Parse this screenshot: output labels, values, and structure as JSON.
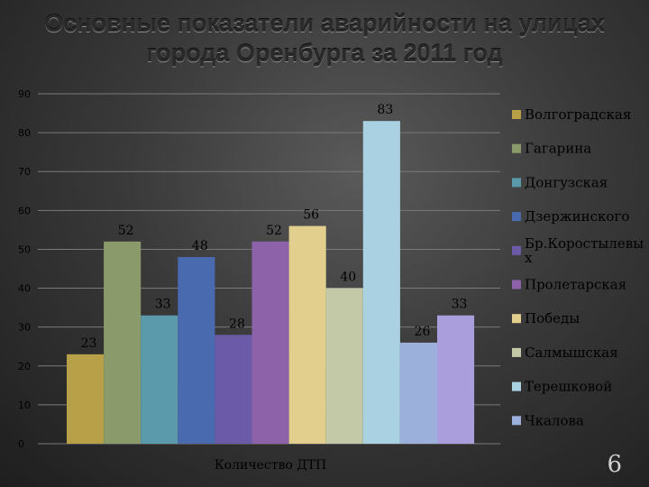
{
  "slide": {
    "title_line1": "Основные показатели аварийности на улицах",
    "title_line2": "города Оренбурга за 2011 год",
    "page_number": "6"
  },
  "chart_data": {
    "type": "bar",
    "title": "Основные показатели аварийности на улицах города Оренбурга за 2011 год",
    "xlabel": "Количество ДТП",
    "ylabel": "",
    "categories": [
      "Количество ДТП"
    ],
    "ylim": [
      0,
      90
    ],
    "yticks": [
      0,
      10,
      20,
      30,
      40,
      50,
      60,
      70,
      80,
      90
    ],
    "grid": true,
    "legend_position": "right",
    "series": [
      {
        "name": "Волгоградская",
        "values": [
          23
        ],
        "color": "#b8a048"
      },
      {
        "name": "Гагарина",
        "values": [
          52
        ],
        "color": "#8a9a6a"
      },
      {
        "name": "Донгузская",
        "values": [
          33
        ],
        "color": "#5a9aaa"
      },
      {
        "name": "Дзержинского",
        "values": [
          48
        ],
        "color": "#4a6ab0"
      },
      {
        "name": "Бр.Коростылевых",
        "values": [
          28
        ],
        "color": "#6a5aa8"
      },
      {
        "name": "Пролетарская",
        "values": [
          52
        ],
        "color": "#8e62a8"
      },
      {
        "name": "Победы",
        "values": [
          56
        ],
        "color": "#e2cf8e"
      },
      {
        "name": "Салмышская",
        "values": [
          40
        ],
        "color": "#c3c9a6"
      },
      {
        "name": "Терешковой",
        "values": [
          83
        ],
        "color": "#a9d1e2"
      },
      {
        "name": "Чкалова",
        "values": [
          26
        ],
        "color": "#9cb0dc"
      },
      {
        "name": "",
        "values": [
          33
        ],
        "color": "#ab9edc"
      }
    ]
  }
}
